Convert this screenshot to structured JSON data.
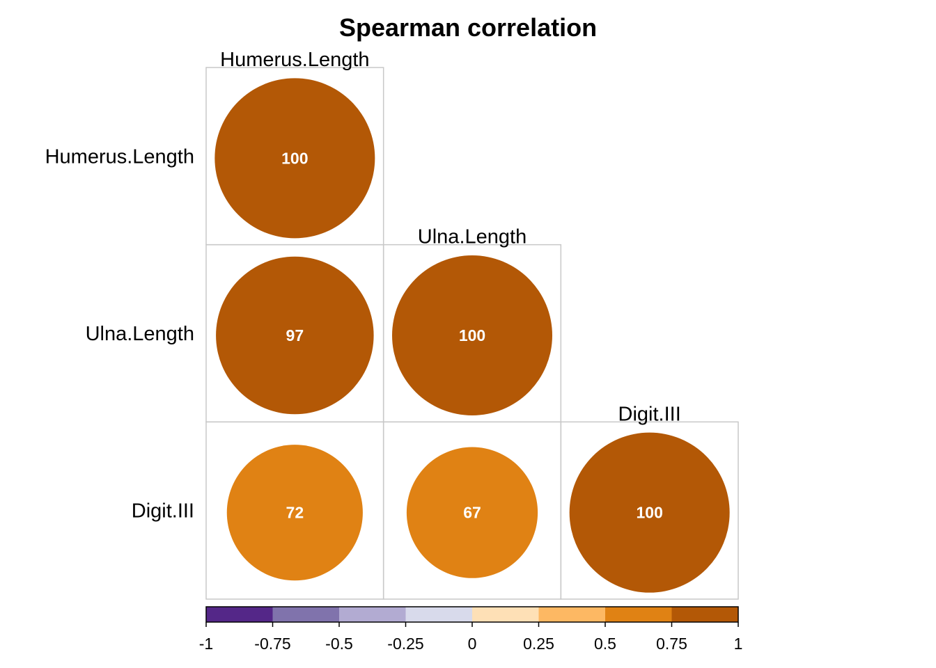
{
  "chart_data": {
    "type": "heatmap",
    "subtype": "correlation-circles-lower-triangle",
    "title": "Spearman correlation",
    "variables": [
      "Humerus.Length",
      "Ulna.Length",
      "Digit.III"
    ],
    "matrix": [
      [
        1.0,
        null,
        null
      ],
      [
        0.97,
        1.0,
        null
      ],
      [
        0.72,
        0.67,
        1.0
      ]
    ],
    "value_labels": [
      [
        "100",
        null,
        null
      ],
      [
        "97",
        "100",
        null
      ],
      [
        "72",
        "67",
        "100"
      ]
    ],
    "colorbar": {
      "range": [
        -1,
        1
      ],
      "ticks": [
        "-1",
        "-0.75",
        "-0.5",
        "-0.25",
        "0",
        "0.25",
        "0.5",
        "0.75",
        "1"
      ],
      "colors": [
        "#542788",
        "#8073ac",
        "#b2abd2",
        "#d8daeb",
        "#fee0b6",
        "#fdb863",
        "#e08214",
        "#b35806"
      ]
    },
    "grid": true,
    "legend_position": "bottom"
  }
}
